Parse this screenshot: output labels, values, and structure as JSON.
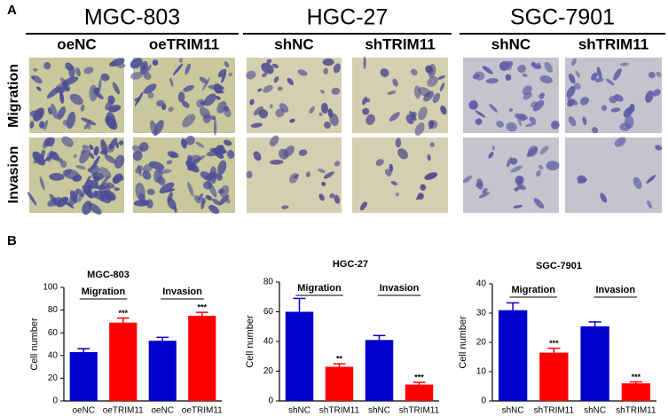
{
  "panel_a": {
    "label": "A",
    "row_labels": [
      "Migration",
      "Invasion"
    ],
    "groups": [
      {
        "title": "MGC-803",
        "columns": [
          "oeNC",
          "oeTRIM11"
        ]
      },
      {
        "title": "HGC-27",
        "columns": [
          "shNC",
          "shTRIM11"
        ]
      },
      {
        "title": "SGC-7901",
        "columns": [
          "shNC",
          "shTRIM11"
        ]
      }
    ]
  },
  "panel_b": {
    "label": "B"
  },
  "chart_data": [
    {
      "type": "bar",
      "title": "MGC-803",
      "y_label": "Cell number",
      "categories": [
        "oeNC",
        "oeTRIM11",
        "oeNC",
        "oeTRIM11"
      ],
      "groups": [
        "Migration",
        "Invasion"
      ],
      "values": [
        43,
        69,
        53,
        75
      ],
      "errors": [
        3,
        4,
        3,
        3
      ],
      "value_annotations": [
        null,
        "***",
        null,
        "***"
      ],
      "colors": [
        "#0000cc",
        "#ff0000",
        "#0000cc",
        "#ff0000"
      ],
      "ylim": [
        0,
        100
      ],
      "yticks": [
        0,
        20,
        40,
        60,
        80,
        100
      ]
    },
    {
      "type": "bar",
      "title": "HGC-27",
      "y_label": "Cell number",
      "categories": [
        "shNC",
        "shTRIM11",
        "shNC",
        "shTRIM11"
      ],
      "groups": [
        "Migration",
        "Invasion"
      ],
      "values": [
        60,
        23,
        41,
        11
      ],
      "errors": [
        9,
        2,
        3,
        1.5
      ],
      "value_annotations": [
        null,
        "**",
        null,
        "***"
      ],
      "colors": [
        "#0000cc",
        "#ff0000",
        "#0000cc",
        "#ff0000"
      ],
      "ylim": [
        0,
        80
      ],
      "yticks": [
        0,
        20,
        40,
        60,
        80
      ]
    },
    {
      "type": "bar",
      "title": "SGC-7901",
      "y_label": "Cell number",
      "categories": [
        "shNC",
        "shTRIM11",
        "shNC",
        "shTRIM11"
      ],
      "groups": [
        "Migration",
        "Invasion"
      ],
      "values": [
        31,
        16.5,
        25.5,
        6
      ],
      "errors": [
        2.5,
        1.5,
        1.5,
        0.5
      ],
      "value_annotations": [
        null,
        "***",
        null,
        "***"
      ],
      "colors": [
        "#0000cc",
        "#ff0000",
        "#0000cc",
        "#ff0000"
      ],
      "ylim": [
        0,
        40
      ],
      "yticks": [
        0,
        10,
        20,
        30,
        40
      ]
    }
  ]
}
